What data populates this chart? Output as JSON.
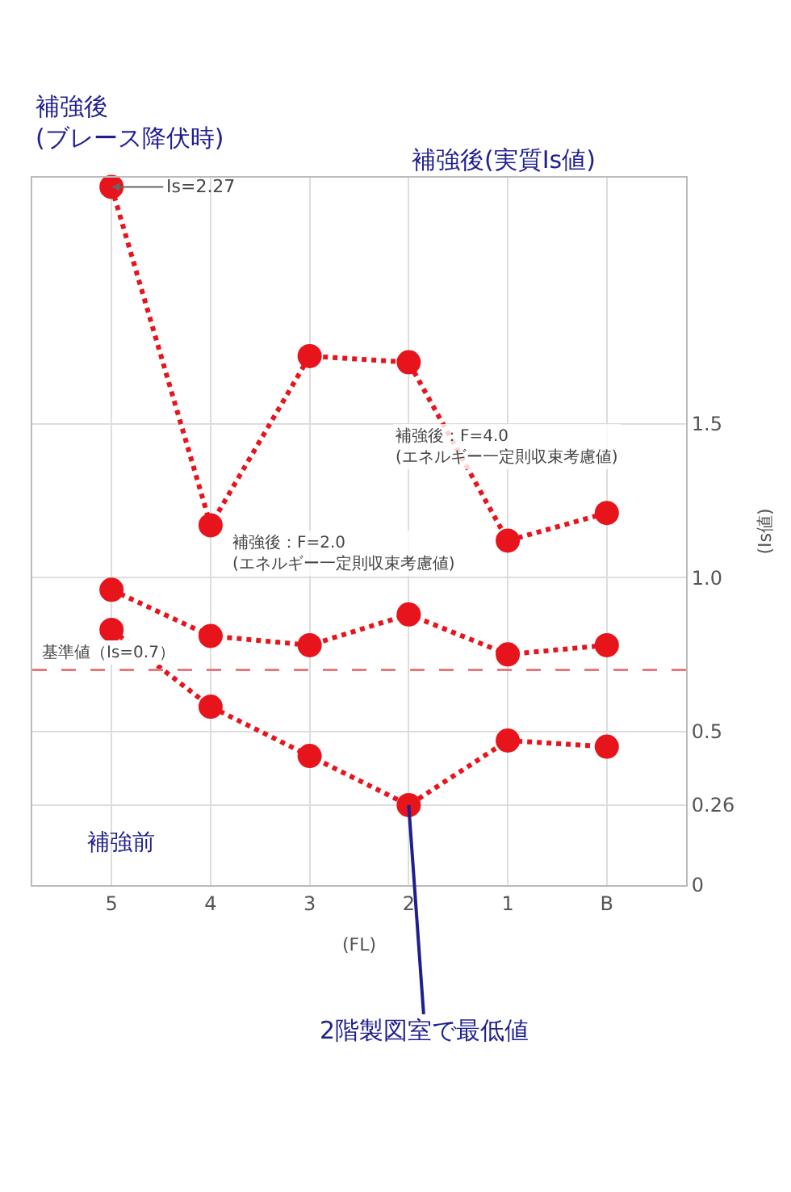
{
  "chart_data": {
    "type": "line",
    "categories": [
      "5",
      "4",
      "3",
      "2",
      "1",
      "B"
    ],
    "xlabel": "(FL)",
    "ylabel": "(Is値)",
    "series": [
      {
        "color": "#e8141c",
        "values": [
          0.83,
          0.58,
          0.42,
          0.26,
          0.47,
          0.45
        ]
      },
      {
        "color": "#e8141c",
        "values": [
          0.96,
          0.81,
          0.78,
          0.88,
          0.75,
          0.78
        ]
      },
      {
        "color": "#e8141c",
        "values": [
          2.27,
          1.17,
          1.72,
          1.7,
          1.12,
          1.21
        ]
      }
    ],
    "ylim": [
      0,
      2.3
    ],
    "yticks": [
      0,
      {
        "value": 0.26,
        "label": "0.26"
      },
      0.5,
      {
        "value": 1,
        "label": "1.0"
      },
      1.5
    ],
    "grid": true,
    "marker": "circle",
    "line_style": "dotted",
    "ref_lines": [
      {
        "axis": "y",
        "value": 0.7,
        "label": "基準値（Is=0.7）",
        "color": "#e8787c",
        "line_style": "dashed"
      }
    ],
    "annotations": [
      "補強後\n(ブレース降伏時)",
      "補強後(実質Is値)",
      "補強前",
      {
        "text": "2階製図室で最低値",
        "x": "2",
        "y": 0.26
      },
      {
        "text": "Is=2.27",
        "x": "5",
        "y": 2.27
      },
      "補強後：F=2.0\n(エネルギー一定則収束考慮値)",
      "補強後：F=4.0\n(エネルギー一定則収束考慮値)"
    ]
  }
}
